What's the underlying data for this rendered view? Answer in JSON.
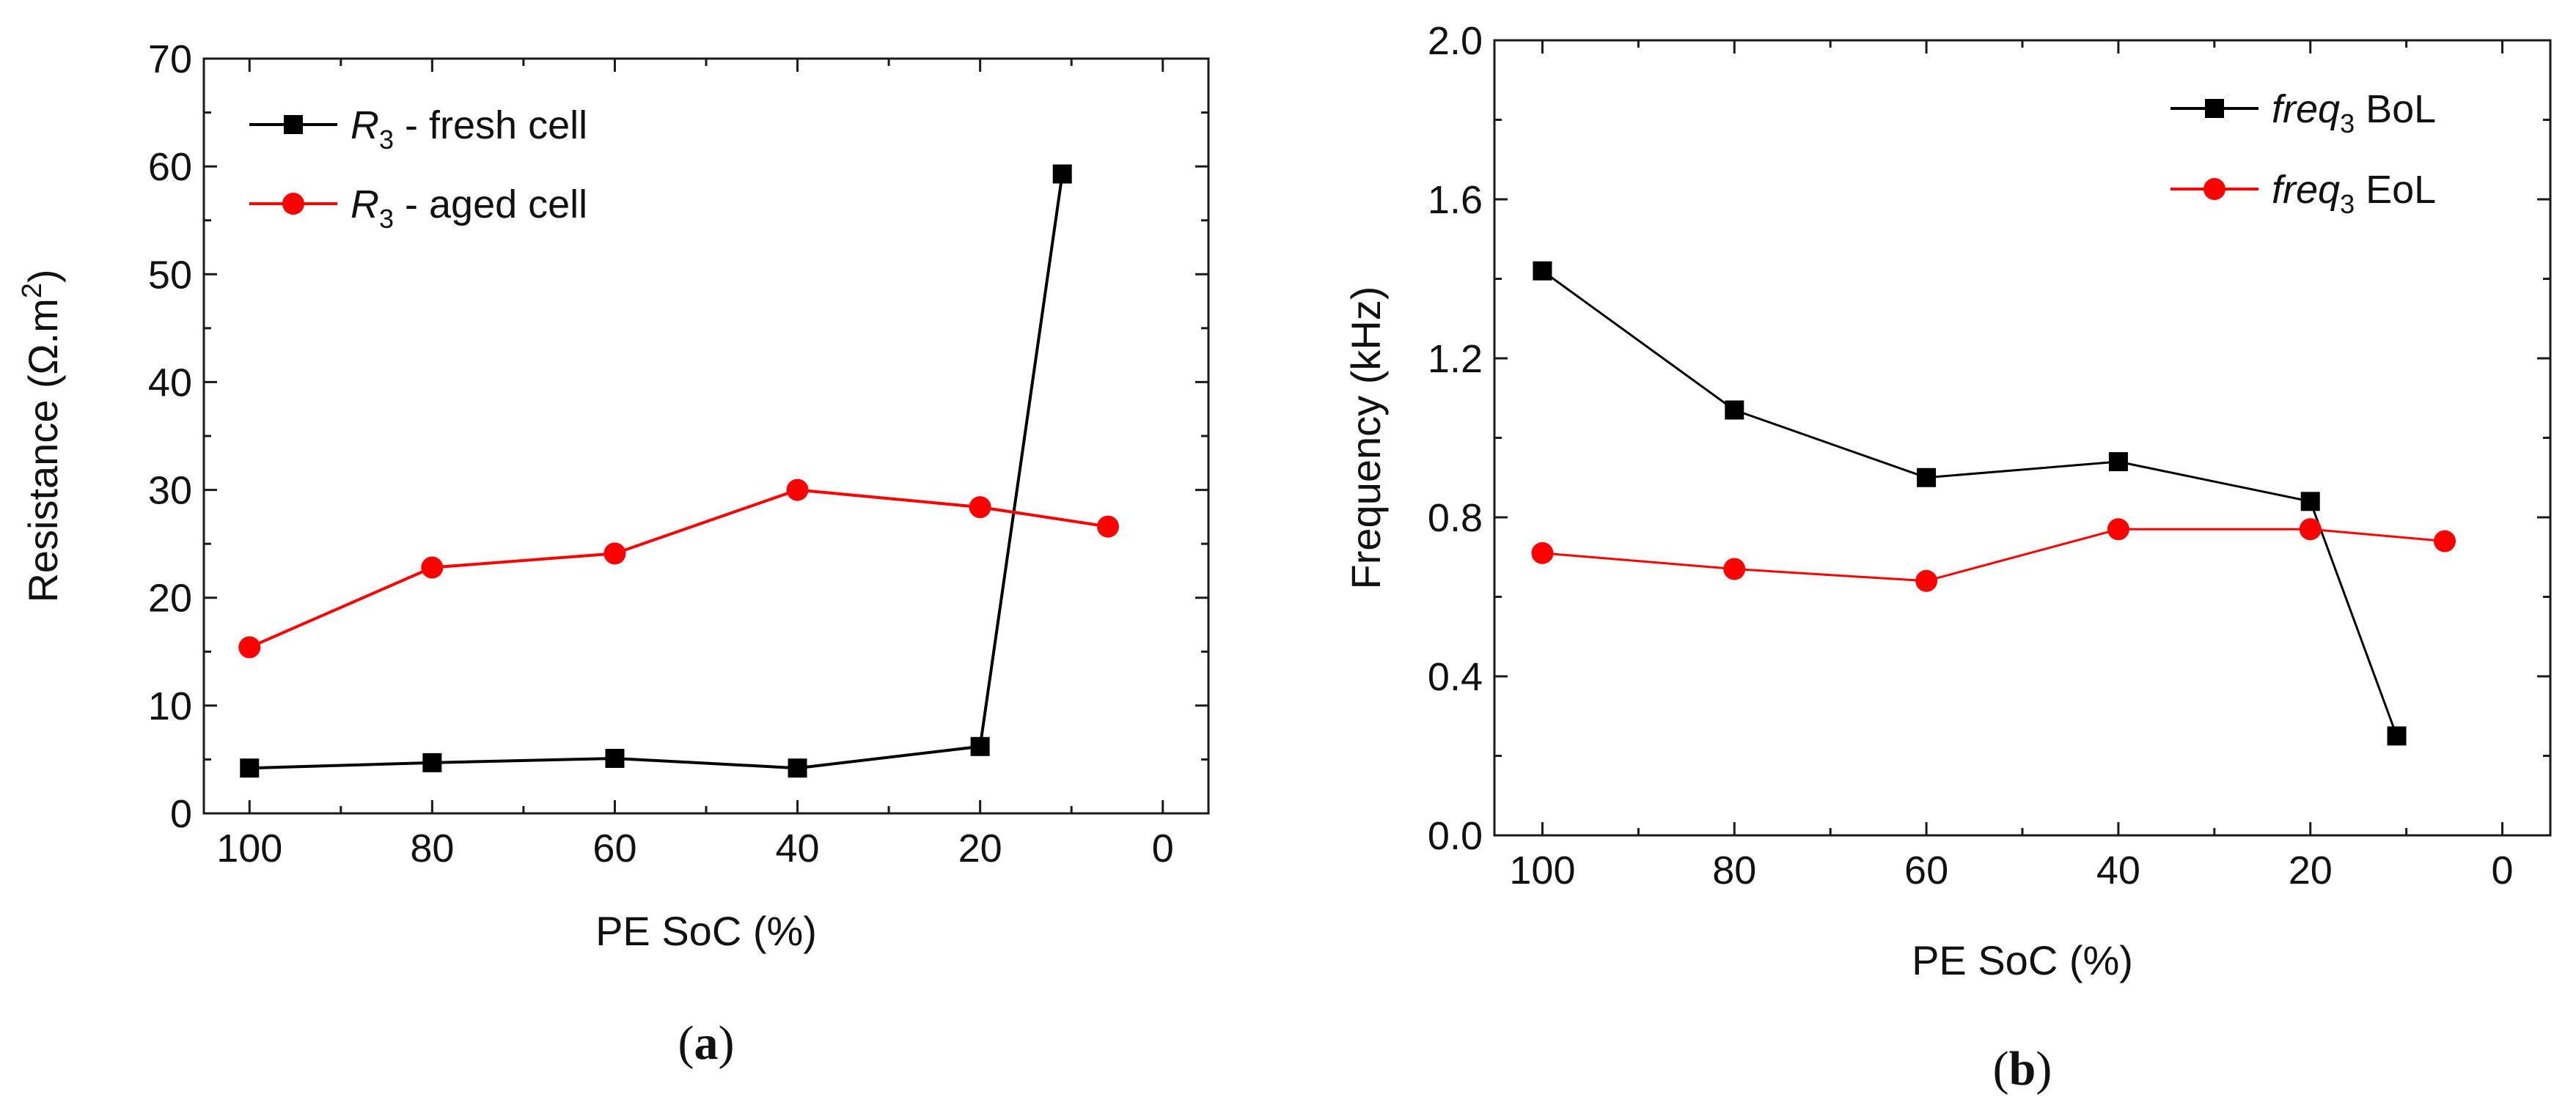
{
  "colors": {
    "series_a": "#000000",
    "series_b": "#ff0000",
    "axis": "#1a1a1a"
  },
  "chart_data": [
    {
      "type": "line",
      "panel_label": "a",
      "xlabel": "PE SoC (%)",
      "ylabel_main": "Resistance (Ω.m",
      "ylabel_sup": "2",
      "ylabel_end": ")",
      "xlim": [
        105,
        -5
      ],
      "ylim": [
        0,
        70
      ],
      "xticks": [
        100,
        80,
        60,
        40,
        20,
        0
      ],
      "yticks": [
        0,
        10,
        20,
        30,
        40,
        50,
        60,
        70
      ],
      "legend_position": "top-left",
      "series": [
        {
          "name_symbol": "R",
          "name_sub": "3",
          "name_rest": " - fresh cell",
          "color": "#000000",
          "marker": "square",
          "x": [
            100,
            80,
            60,
            40,
            20,
            11
          ],
          "y": [
            4.2,
            4.7,
            5.1,
            4.2,
            6.2,
            59.3
          ]
        },
        {
          "name_symbol": "R",
          "name_sub": "3",
          "name_rest": " - aged cell",
          "color": "#ff0000",
          "marker": "circle",
          "x": [
            100,
            80,
            60,
            40,
            20,
            6
          ],
          "y": [
            15.4,
            22.8,
            24.1,
            30.0,
            28.4,
            26.6
          ]
        }
      ]
    },
    {
      "type": "line",
      "panel_label": "b",
      "xlabel": "PE SoC (%)",
      "ylabel": "Frequency (kHz)",
      "xlim": [
        105,
        -5
      ],
      "ylim": [
        0,
        2.0
      ],
      "xticks": [
        100,
        80,
        60,
        40,
        20,
        0
      ],
      "yticks": [
        "0.0",
        "0.4",
        "0.8",
        "1.2",
        "1.6",
        "2.0"
      ],
      "legend_position": "top-right",
      "series": [
        {
          "name_symbol": "freq",
          "name_sub": "3",
          "name_rest": " BoL",
          "color": "#000000",
          "marker": "square",
          "x": [
            100,
            80,
            60,
            40,
            20,
            11
          ],
          "y": [
            1.42,
            1.07,
            0.9,
            0.94,
            0.84,
            0.25
          ]
        },
        {
          "name_symbol": "freq",
          "name_sub": "3",
          "name_rest": " EoL",
          "color": "#ff0000",
          "marker": "circle",
          "x": [
            100,
            80,
            60,
            40,
            20,
            6
          ],
          "y": [
            0.71,
            0.67,
            0.64,
            0.77,
            0.77,
            0.74
          ]
        }
      ]
    }
  ]
}
